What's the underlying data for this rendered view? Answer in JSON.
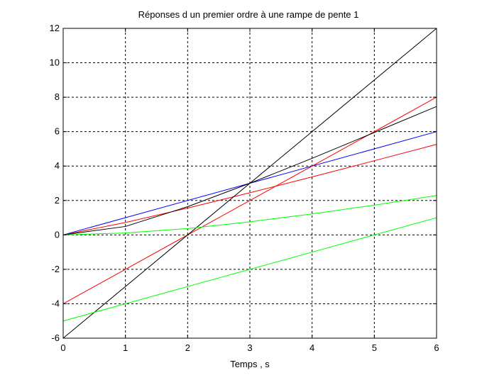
{
  "chart_data": {
    "type": "line",
    "title": "Réponses d un premier ordre à une rampe de pente 1",
    "xlabel": "Temps , s",
    "ylabel": "",
    "xlim": [
      0,
      6
    ],
    "ylim": [
      -6,
      12
    ],
    "grid": true,
    "x_ticks": [
      "0",
      "1",
      "2",
      "3",
      "4",
      "5",
      "6"
    ],
    "y_ticks": [
      "-6",
      "-4",
      "-2",
      "0",
      "2",
      "4",
      "6",
      "8",
      "10",
      "12"
    ],
    "series": [
      {
        "color": "#0000ff",
        "x": [
          0,
          6
        ],
        "y": [
          0,
          6
        ]
      },
      {
        "color": "#ff0000",
        "x": [
          0,
          1,
          2,
          3,
          4,
          5,
          6
        ],
        "y": [
          0,
          0.72,
          1.56,
          2.45,
          3.37,
          4.31,
          5.26
        ]
      },
      {
        "color": "#ff0000",
        "x": [
          0,
          6
        ],
        "y": [
          -4,
          8
        ]
      },
      {
        "color": "#000000",
        "x": [
          0,
          1,
          2,
          3,
          4,
          5,
          6
        ],
        "y": [
          0,
          0.49,
          1.64,
          3.0,
          4.45,
          5.95,
          7.46
        ]
      },
      {
        "color": "#000000",
        "x": [
          0,
          6
        ],
        "y": [
          -6,
          12
        ]
      },
      {
        "color": "#00ff00",
        "x": [
          0,
          1,
          2,
          3,
          4,
          5,
          6
        ],
        "y": [
          0,
          0.11,
          0.37,
          0.76,
          1.22,
          1.73,
          2.29
        ]
      },
      {
        "color": "#00ff00",
        "x": [
          0,
          6
        ],
        "y": [
          -5,
          1
        ]
      }
    ]
  }
}
